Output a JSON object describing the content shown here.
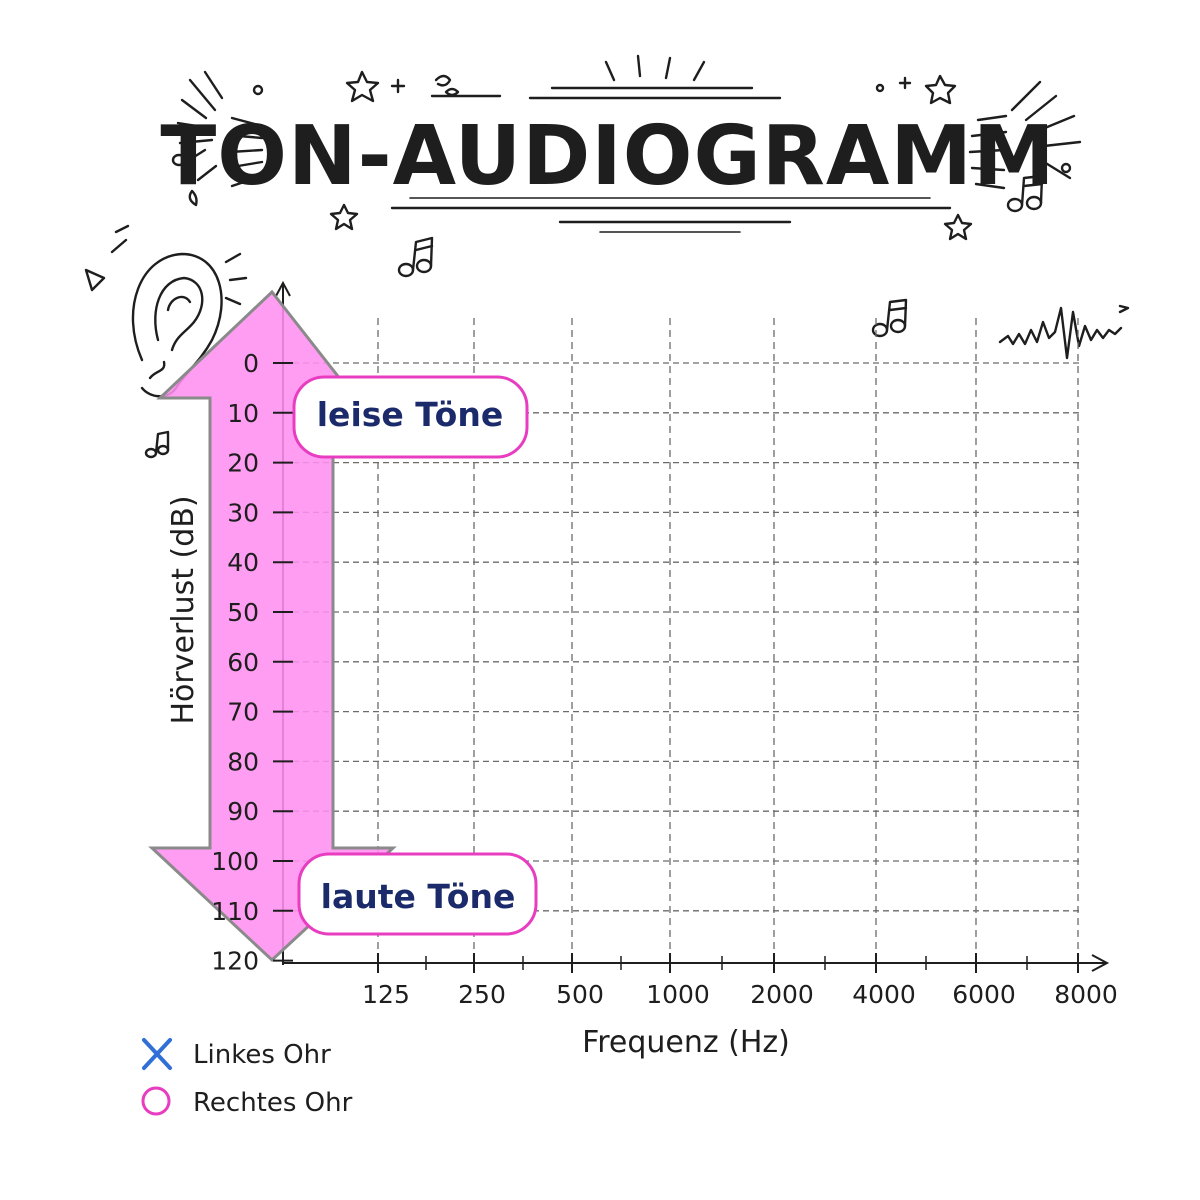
{
  "chart_data": {
    "type": "scatter",
    "title": "TON-AUDIOGRAMM",
    "xlabel": "Frequenz (Hz)",
    "ylabel": "Hörverlust (dB)",
    "x_categories": [
      "125",
      "250",
      "500",
      "1000",
      "2000",
      "4000",
      "6000",
      "8000"
    ],
    "y_ticks": [
      "0",
      "10",
      "20",
      "30",
      "40",
      "50",
      "60",
      "70",
      "80",
      "90",
      "100",
      "110",
      "120"
    ],
    "ylim": [
      0,
      120
    ],
    "y_inverted": true,
    "grid": true,
    "series": [
      {
        "name": "Linkes Ohr",
        "marker": "x",
        "color": "#2f6fd6",
        "values": []
      },
      {
        "name": "Rechtes Ohr",
        "marker": "o",
        "color": "#e83dc0",
        "values": []
      }
    ],
    "annotations": [
      {
        "text": "leise Töne",
        "y": 10
      },
      {
        "text": "laute Töne",
        "y": 110
      }
    ],
    "legend_position": "bottom-left"
  },
  "colors": {
    "arrow_fill": "#ff8ff0",
    "arrow_stroke": "#8a8a8a",
    "callout_border": "#e83dc0",
    "callout_text": "#1b2a6b",
    "grid": "#6b6b6b",
    "left_ear": "#2f6fd6",
    "right_ear": "#e83dc0"
  },
  "icons": [
    "ear-icon",
    "music-note-icon",
    "star-icon",
    "sound-wave-icon",
    "x-mark-icon",
    "circle-mark-icon"
  ]
}
